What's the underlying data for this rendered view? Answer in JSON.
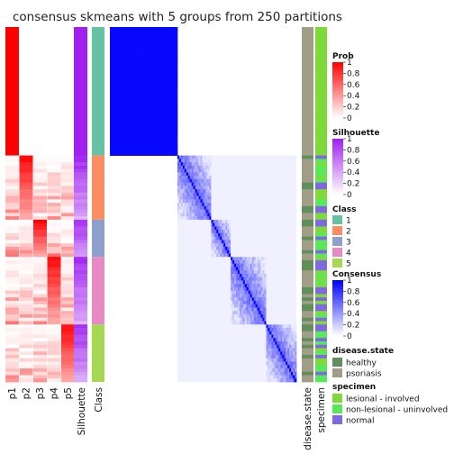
{
  "chart_data": {
    "type": "heatmap",
    "title": "consensus skmeans with 5 groups from 250 partitions",
    "column_labels": [
      "p1",
      "p2",
      "p3",
      "p4",
      "p5",
      "Silhouette",
      "Class"
    ],
    "annotation_labels": [
      "disease.state",
      "specimen"
    ],
    "groups": [
      {
        "class": "1",
        "size": 38,
        "prob_col": 1
      },
      {
        "class": "2",
        "size": 19,
        "prob_col": 2
      },
      {
        "class": "3",
        "size": 11,
        "prob_col": 3
      },
      {
        "class": "4",
        "size": 20,
        "prob_col": 4
      },
      {
        "class": "5",
        "size": 17,
        "prob_col": 5
      }
    ],
    "legends": {
      "prob": {
        "title": "Prob",
        "ticks": [
          "1",
          "0.8",
          "0.6",
          "0.4",
          "0.2",
          "0"
        ],
        "color_high": "#FF0000",
        "color_low": "#FFFFFF"
      },
      "silhouette": {
        "title": "Silhouette",
        "ticks": [
          "1",
          "0.8",
          "0.6",
          "0.4",
          "0.2",
          "0"
        ],
        "color_high": "#A020F0",
        "color_low": "#FFFFFF"
      },
      "class": {
        "title": "Class",
        "items": [
          {
            "label": "1",
            "color": "#66C2A5"
          },
          {
            "label": "2",
            "color": "#FC8D62"
          },
          {
            "label": "3",
            "color": "#8DA0CB"
          },
          {
            "label": "4",
            "color": "#E78AC3"
          },
          {
            "label": "5",
            "color": "#A6D854"
          }
        ]
      },
      "consensus": {
        "title": "Consensus",
        "ticks": [
          "1",
          "0.8",
          "0.6",
          "0.4",
          "0.2",
          "0"
        ],
        "color_high": "#0000FF",
        "color_low": "#FFFFFF"
      },
      "disease_state": {
        "title": "disease.state",
        "items": [
          {
            "label": "healthy",
            "color": "#5F8F5A"
          },
          {
            "label": "psoriasis",
            "color": "#A19E87"
          }
        ]
      },
      "specimen": {
        "title": "specimen",
        "items": [
          {
            "label": "lesional - involved",
            "color": "#7FD93A"
          },
          {
            "label": "non-lesional - uninvolved",
            "color": "#59E85A"
          },
          {
            "label": "normal",
            "color": "#7F68E0"
          }
        ]
      }
    }
  }
}
